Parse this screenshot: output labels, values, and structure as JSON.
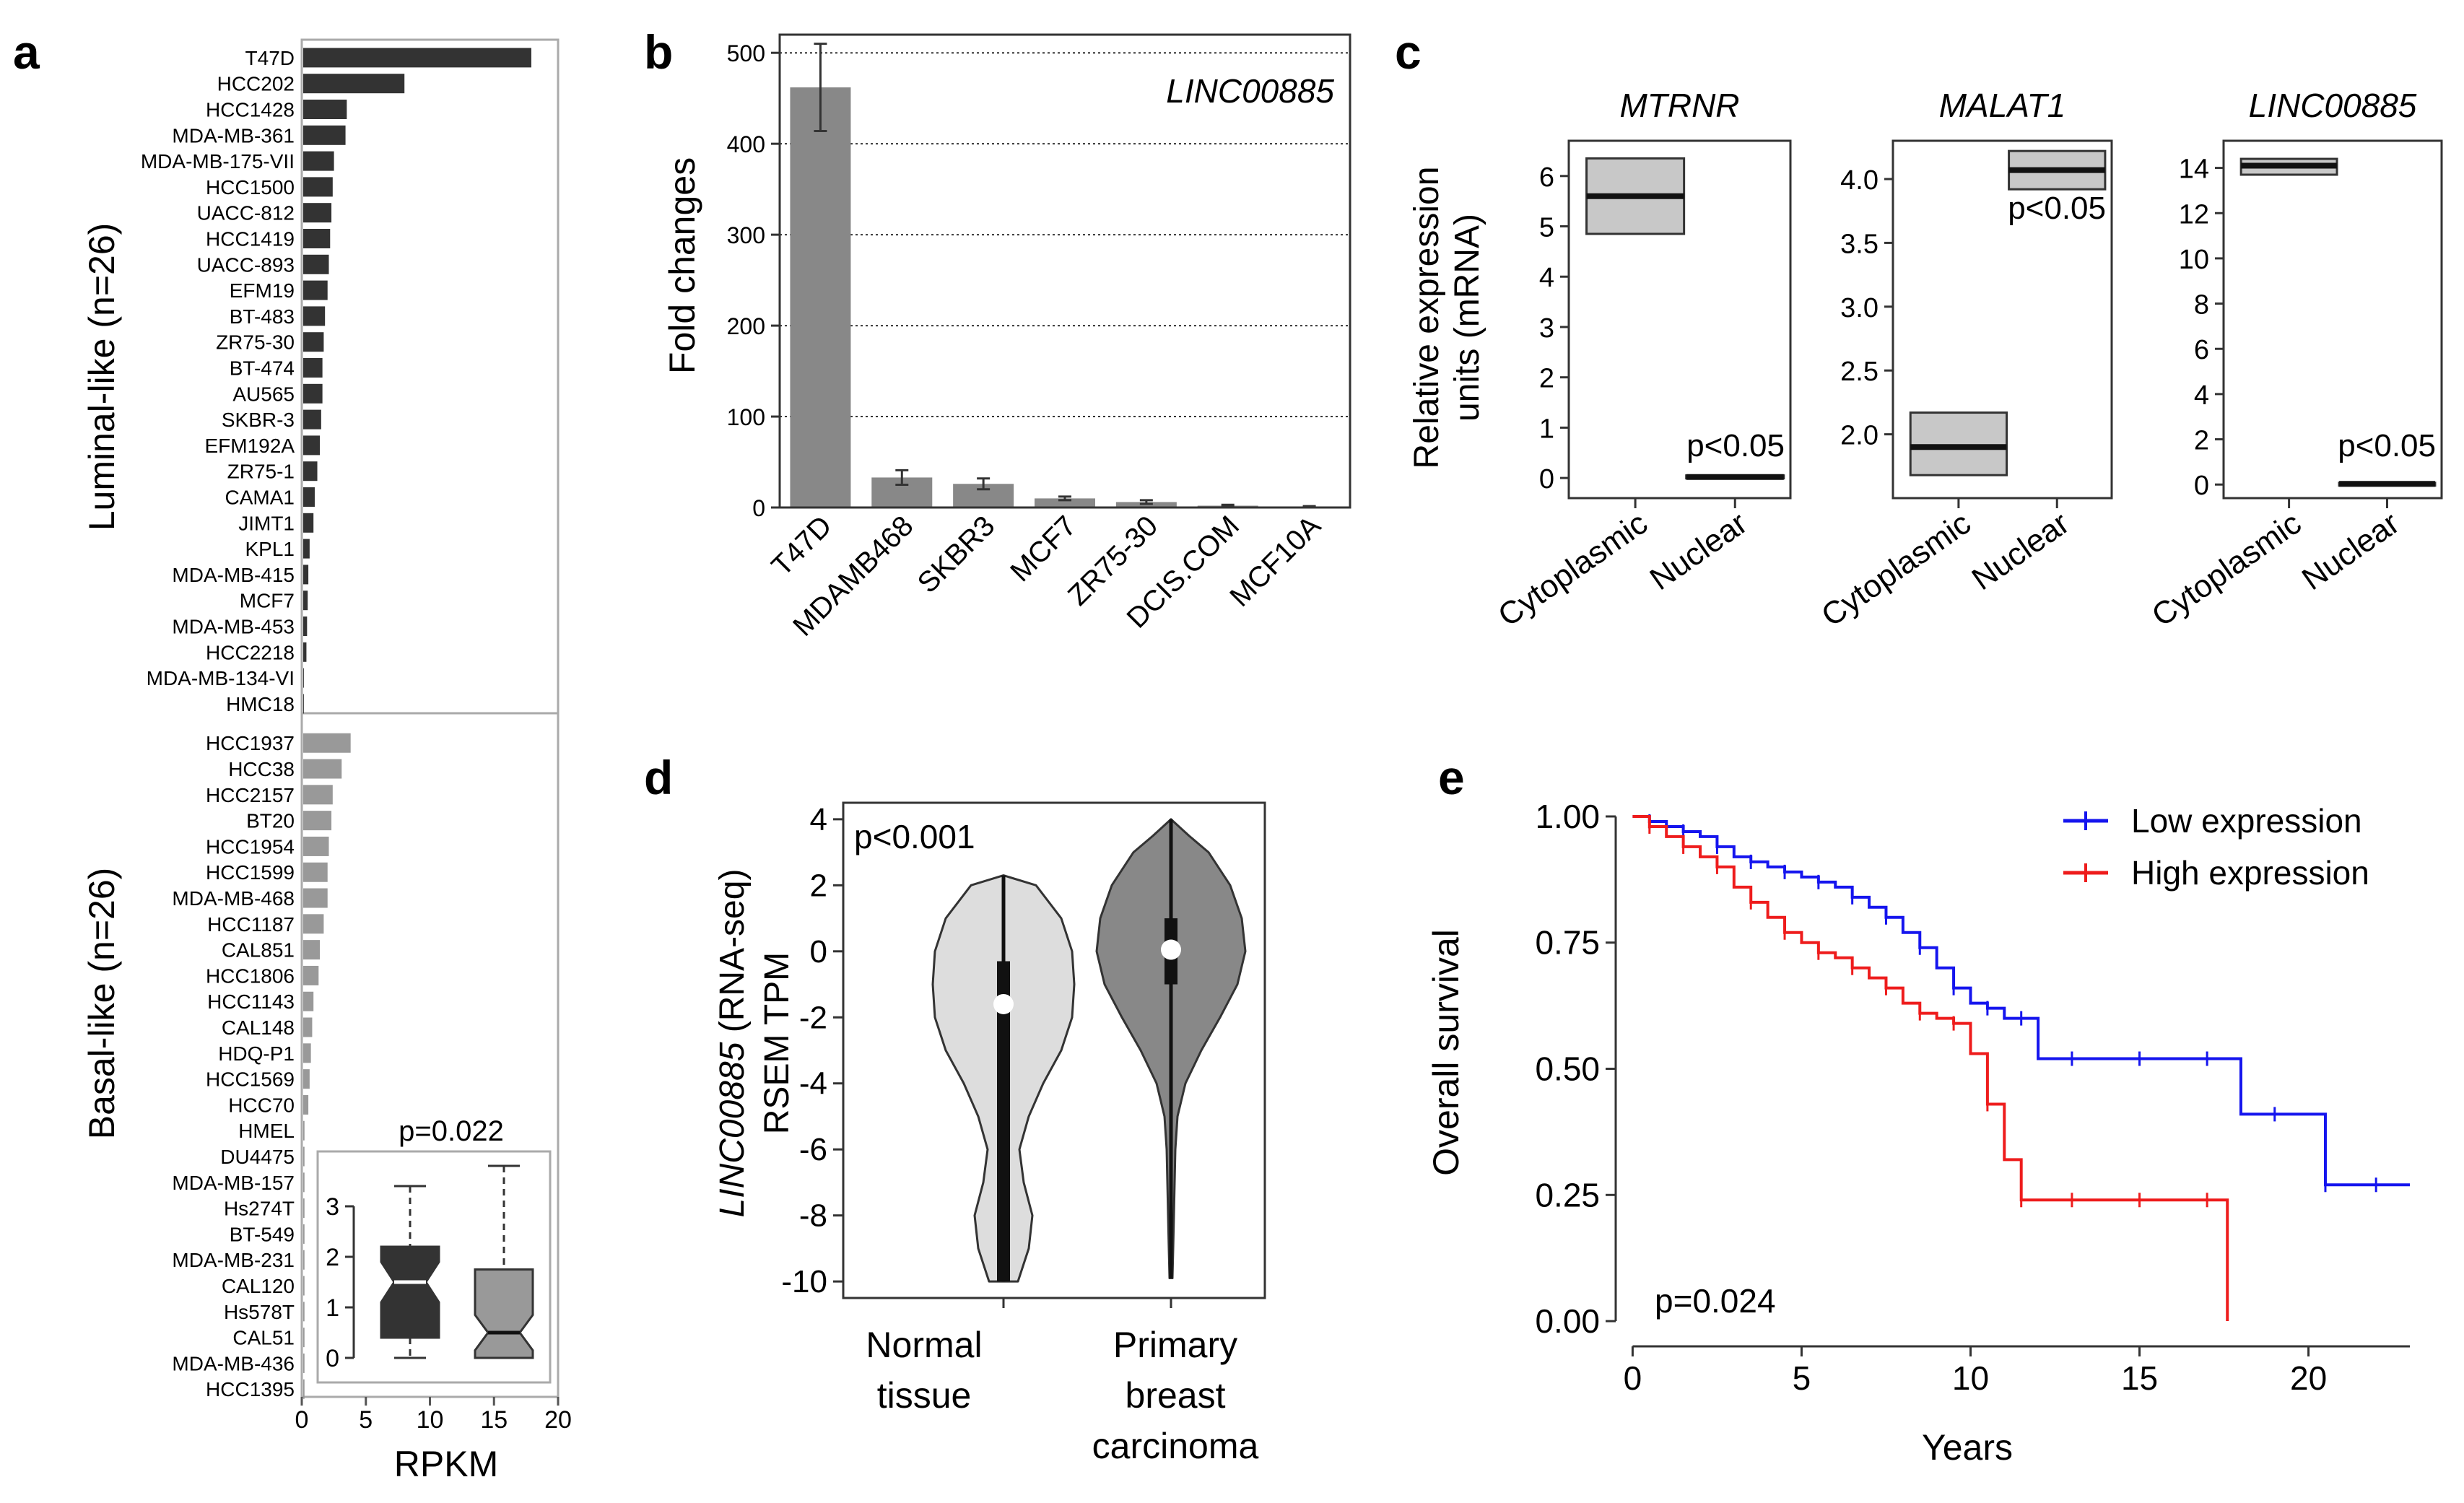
{
  "panels": {
    "a": {
      "letter": "a",
      "group_labels": [
        "Luminal-like (n=26)",
        "Basal-like (n=26)"
      ],
      "xlabel": "RPKM",
      "inset_p": "p=0.022"
    },
    "b": {
      "letter": "b",
      "ylabel": "Fold changes",
      "gene": "LINC00885"
    },
    "c": {
      "letter": "c",
      "ylabel_line1": "Relative expression",
      "ylabel_line2": "units (mRNA)",
      "categories": [
        "Cytoplasmic",
        "Nuclear"
      ]
    },
    "d": {
      "letter": "d",
      "ylabel_gene": "LINC00885",
      "ylabel_rest": " (RNA-seq)",
      "ylabel_line2": "RSEM TPM",
      "p": "p<0.001",
      "cat1_line1": "Normal",
      "cat1_line2": "tissue",
      "cat2_line1": "Primary",
      "cat2_line2": "breast",
      "cat2_line3": "carcinoma"
    },
    "e": {
      "letter": "e",
      "ylabel": "Overall survival",
      "xlabel": "Years",
      "p": "p=0.024"
    }
  },
  "chart_data": [
    {
      "id": "a",
      "type": "bar",
      "orientation": "horizontal",
      "xlabel": "RPKM",
      "xlim": [
        0,
        20
      ],
      "xticks": [
        0,
        5,
        10,
        15,
        20
      ],
      "groups": [
        {
          "name": "Luminal-like (n=26)",
          "color": "#333333",
          "categories": [
            "T47D",
            "HCC202",
            "HCC1428",
            "MDA-MB-361",
            "MDA-MB-175-VII",
            "HCC1500",
            "UACC-812",
            "HCC1419",
            "UACC-893",
            "EFM19",
            "BT-483",
            "ZR75-30",
            "BT-474",
            "AU565",
            "SKBR-3",
            "EFM192A",
            "ZR75-1",
            "CAMA1",
            "JIMT1",
            "KPL1",
            "MDA-MB-415",
            "MCF7",
            "MDA-MB-453",
            "HCC2218",
            "MDA-MB-134-VI",
            "HMC18"
          ],
          "values": [
            17.8,
            7.9,
            3.4,
            3.3,
            2.4,
            2.3,
            2.2,
            2.1,
            2.0,
            1.9,
            1.7,
            1.6,
            1.5,
            1.5,
            1.4,
            1.3,
            1.1,
            0.9,
            0.8,
            0.5,
            0.4,
            0.35,
            0.3,
            0.25,
            0.05,
            0.05
          ]
        },
        {
          "name": "Basal-like (n=26)",
          "color": "#999999",
          "categories": [
            "HCC1937",
            "HCC38",
            "HCC2157",
            "BT20",
            "HCC1954",
            "HCC1599",
            "MDA-MB-468",
            "HCC1187",
            "CAL851",
            "HCC1806",
            "HCC1143",
            "CAL148",
            "HDQ-P1",
            "HCC1569",
            "HCC70",
            "HMEL",
            "DU4475",
            "MDA-MB-157",
            "Hs274T",
            "BT-549",
            "MDA-MB-231",
            "CAL120",
            "Hs578T",
            "CAL51",
            "MDA-MB-436",
            "HCC1395"
          ],
          "values": [
            3.7,
            3.0,
            2.3,
            2.2,
            2.0,
            1.9,
            1.9,
            1.6,
            1.3,
            1.2,
            0.8,
            0.7,
            0.6,
            0.5,
            0.4,
            0.1,
            0.1,
            0.1,
            0.1,
            0.1,
            0.1,
            0.1,
            0.1,
            0.1,
            0.1,
            0.1
          ]
        }
      ],
      "inset": {
        "type": "boxplot",
        "notched": true,
        "p": "p=0.022",
        "ylim": [
          -0.2,
          3.8
        ],
        "yticks": [
          0,
          1,
          2,
          3
        ],
        "boxes": [
          {
            "name": "Luminal-like",
            "color": "#333333",
            "min": 0.0,
            "q1": 0.4,
            "median": 1.5,
            "q3": 2.2,
            "max": 3.4,
            "notch": [
              1.1,
              1.9
            ]
          },
          {
            "name": "Basal-like",
            "color": "#999999",
            "min": 0.0,
            "q1": 0.0,
            "median": 0.5,
            "q3": 1.75,
            "max": 3.8,
            "notch": [
              0.15,
              0.85
            ]
          }
        ]
      }
    },
    {
      "id": "b",
      "type": "bar",
      "title": "LINC00885",
      "ylabel": "Fold changes",
      "ylim": [
        0,
        520
      ],
      "yticks": [
        0,
        100,
        200,
        300,
        400,
        500
      ],
      "categories": [
        "T47D",
        "MDAMB468",
        "SKBR3",
        "MCF7",
        "ZR75-30",
        "DCIS.COM",
        "MCF10A"
      ],
      "values": [
        462,
        33,
        26,
        10,
        6,
        2,
        1
      ],
      "errors": [
        48,
        8,
        6,
        2,
        2,
        1,
        0.5
      ],
      "color": "#888888"
    },
    {
      "id": "c",
      "type": "boxplot",
      "categories": [
        "Cytoplasmic",
        "Nuclear"
      ],
      "ylabel": "Relative expression units (mRNA)",
      "subplots": [
        {
          "title": "MTRNR",
          "ylim": [
            -0.4,
            6.7
          ],
          "yticks": [
            0,
            1,
            2,
            3,
            4,
            5,
            6
          ],
          "p": "p<0.05",
          "p_position": "bottom-right",
          "boxes": [
            {
              "category": "Cytoplasmic",
              "q1": 4.85,
              "median": 5.6,
              "q3": 6.35
            },
            {
              "category": "Nuclear",
              "q1": 0.0,
              "median": 0.02,
              "q3": 0.05
            }
          ]
        },
        {
          "title": "MALAT1",
          "ylim": [
            1.5,
            4.3
          ],
          "yticks": [
            2.0,
            2.5,
            3.0,
            3.5,
            4.0
          ],
          "p": "p<0.05",
          "p_position": "top-right",
          "boxes": [
            {
              "category": "Cytoplasmic",
              "q1": 1.68,
              "median": 1.9,
              "q3": 2.17
            },
            {
              "category": "Nuclear",
              "q1": 3.92,
              "median": 4.07,
              "q3": 4.22
            }
          ]
        },
        {
          "title": "LINC00885",
          "ylim": [
            -0.6,
            15.2
          ],
          "yticks": [
            0,
            2,
            4,
            6,
            8,
            10,
            12,
            14
          ],
          "p": "p<0.05",
          "p_position": "bottom-right",
          "boxes": [
            {
              "category": "Cytoplasmic",
              "q1": 13.7,
              "median": 14.1,
              "q3": 14.4
            },
            {
              "category": "Nuclear",
              "q1": 0.0,
              "median": 0.03,
              "q3": 0.08
            }
          ]
        }
      ]
    },
    {
      "id": "d",
      "type": "violin",
      "ylabel": "LINC00885 (RNA-seq) RSEM TPM",
      "ylim": [
        -10.5,
        4.5
      ],
      "yticks": [
        4,
        2,
        0,
        -2,
        -4,
        -6,
        -8,
        -10
      ],
      "p": "p<0.001",
      "groups": [
        {
          "name": "Normal tissue",
          "color": "#dddddd",
          "median": -1.6,
          "q1": -10.0,
          "q3": -0.3,
          "min": -10.0,
          "max": 2.3
        },
        {
          "name": "Primary breast carcinoma",
          "color": "#888888",
          "median": 0.05,
          "q1": -1.0,
          "q3": 1.0,
          "min": -9.9,
          "max": 4.0
        }
      ]
    },
    {
      "id": "e",
      "type": "line",
      "subtype": "kaplan-meier",
      "xlabel": "Years",
      "ylabel": "Overall survival",
      "xlim": [
        -0.5,
        23
      ],
      "ylim": [
        -0.05,
        1.03
      ],
      "xticks": [
        0,
        5,
        10,
        15,
        20
      ],
      "yticks": [
        0.0,
        0.25,
        0.5,
        0.75,
        1.0
      ],
      "p": "p=0.024",
      "legend_position": "top-right",
      "series": [
        {
          "name": "Low expression",
          "color": "#1515ee",
          "x": [
            0,
            0.5,
            1,
            1.5,
            2,
            2.5,
            3,
            3.5,
            4,
            4.5,
            5,
            5.5,
            6,
            6.5,
            7,
            7.5,
            8,
            8.5,
            9,
            9.5,
            10,
            10.5,
            11,
            11.5,
            12,
            13,
            14,
            15,
            16,
            17,
            18,
            19,
            20,
            20.5,
            21,
            22,
            23
          ],
          "y": [
            1.0,
            0.99,
            0.98,
            0.97,
            0.96,
            0.94,
            0.92,
            0.91,
            0.9,
            0.89,
            0.88,
            0.87,
            0.86,
            0.84,
            0.82,
            0.8,
            0.77,
            0.74,
            0.7,
            0.66,
            0.63,
            0.62,
            0.6,
            0.6,
            0.52,
            0.52,
            0.52,
            0.52,
            0.52,
            0.52,
            0.41,
            0.41,
            0.41,
            0.27,
            0.27,
            0.27,
            0.27
          ]
        },
        {
          "name": "High expression",
          "color": "#ee1c1c",
          "x": [
            0,
            0.5,
            1,
            1.5,
            2,
            2.5,
            3,
            3.5,
            4,
            4.5,
            5,
            5.5,
            6,
            6.5,
            7,
            7.5,
            8,
            8.5,
            9,
            9.5,
            10,
            10.5,
            11,
            11.5,
            12,
            13,
            14,
            15,
            16,
            17,
            17.6,
            17.6
          ],
          "y": [
            1.0,
            0.98,
            0.96,
            0.94,
            0.92,
            0.9,
            0.86,
            0.83,
            0.8,
            0.77,
            0.75,
            0.73,
            0.72,
            0.7,
            0.68,
            0.66,
            0.63,
            0.61,
            0.6,
            0.59,
            0.53,
            0.43,
            0.32,
            0.24,
            0.24,
            0.24,
            0.24,
            0.24,
            0.24,
            0.24,
            0.24,
            0.0
          ]
        }
      ]
    }
  ]
}
